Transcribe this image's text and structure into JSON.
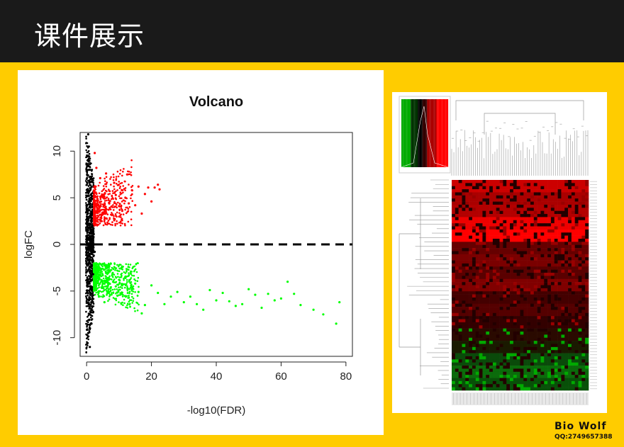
{
  "slide": {
    "title": "课件展示"
  },
  "branding": {
    "name": "Bio Wolf",
    "qq": "QQ:2749657388"
  },
  "colors": {
    "topbar": "#1a1a1a",
    "background": "#ffcc00",
    "up": "#ff0000",
    "down": "#00ff00",
    "ns": "#000000"
  },
  "chart_data": [
    {
      "type": "scatter",
      "title": "Volcano",
      "xlabel": "-log10(FDR)",
      "ylabel": "logFC",
      "xlim": [
        -2,
        82
      ],
      "ylim": [
        -12,
        12
      ],
      "xticks": [
        0,
        20,
        40,
        60,
        80
      ],
      "yticks": [
        -10,
        -5,
        0,
        5,
        10
      ],
      "hline": 0,
      "series": [
        {
          "color": "#000000",
          "points": [
            [
              0.5,
              11.8
            ],
            [
              0.7,
              10.5
            ],
            [
              1,
              9.2
            ],
            [
              0.8,
              8
            ],
            [
              1.2,
              7
            ],
            [
              1.1,
              6
            ],
            [
              1.3,
              5
            ],
            [
              0.9,
              4
            ],
            [
              1.6,
              3.2
            ],
            [
              1.4,
              2.6
            ],
            [
              1.8,
              2
            ],
            [
              2,
              1.5
            ],
            [
              2.2,
              1.1
            ],
            [
              0.6,
              0.5
            ],
            [
              1.8,
              0.3
            ],
            [
              0.6,
              -0.5
            ],
            [
              2.5,
              -0.8
            ],
            [
              2.2,
              -1.2
            ],
            [
              1.8,
              -1.6
            ],
            [
              1.5,
              -2.2
            ],
            [
              1.2,
              -2.8
            ],
            [
              2,
              -3.2
            ],
            [
              1,
              -3.7
            ],
            [
              0.8,
              -4.5
            ],
            [
              1.2,
              -5.2
            ],
            [
              0.7,
              -6
            ],
            [
              1,
              -7.5
            ],
            [
              1.5,
              -8.5
            ],
            [
              0.5,
              -9.5
            ],
            [
              1,
              -11
            ]
          ]
        },
        {
          "color": "#ff0000",
          "points": [
            [
              2.4,
              2.3
            ],
            [
              3,
              2.8
            ],
            [
              4,
              3.5
            ],
            [
              3.5,
              4.2
            ],
            [
              5,
              5.2
            ],
            [
              2.8,
              6.2
            ],
            [
              4.2,
              7.1
            ],
            [
              3,
              8.2
            ],
            [
              2.5,
              9.8
            ],
            [
              6,
              3.8
            ],
            [
              7,
              4.4
            ],
            [
              8,
              3.2
            ],
            [
              9,
              5.3
            ],
            [
              10,
              4.1
            ],
            [
              11,
              3.6
            ],
            [
              12,
              5
            ],
            [
              12.5,
              7.5
            ],
            [
              13,
              4.4
            ],
            [
              14,
              5.8
            ],
            [
              15,
              4.2
            ],
            [
              16,
              6.2
            ],
            [
              17,
              3.3
            ],
            [
              18,
              5.4
            ],
            [
              19,
              6.1
            ],
            [
              20,
              4.6
            ],
            [
              21,
              6.1
            ],
            [
              22,
              6.4
            ],
            [
              22.5,
              5.9
            ],
            [
              8.5,
              6.6
            ],
            [
              6,
              7.6
            ]
          ]
        },
        {
          "color": "#00ff00",
          "points": [
            [
              2.5,
              -2.4
            ],
            [
              3.5,
              -3
            ],
            [
              4.5,
              -3.4
            ],
            [
              5.5,
              -2.7
            ],
            [
              6.5,
              -3.6
            ],
            [
              7,
              -4.2
            ],
            [
              8,
              -3.1
            ],
            [
              9,
              -4.5
            ],
            [
              10,
              -3.8
            ],
            [
              11,
              -4.4
            ],
            [
              12,
              -3.6
            ],
            [
              13,
              -5.7
            ],
            [
              14,
              -4.8
            ],
            [
              15,
              -4.2
            ],
            [
              16,
              -5.1
            ],
            [
              18,
              -6.5
            ],
            [
              20,
              -4.4
            ],
            [
              22,
              -5.2
            ],
            [
              24,
              -6.4
            ],
            [
              26,
              -5.6
            ],
            [
              28,
              -5.1
            ],
            [
              30,
              -6.2
            ],
            [
              32,
              -5.6
            ],
            [
              34,
              -6.4
            ],
            [
              36,
              -7
            ],
            [
              38,
              -4.9
            ],
            [
              40,
              -6
            ],
            [
              42,
              -5.2
            ],
            [
              44,
              -6.1
            ],
            [
              46,
              -6.6
            ],
            [
              48,
              -6.4
            ],
            [
              50,
              -4.8
            ],
            [
              52,
              -5.4
            ],
            [
              54,
              -6.8
            ],
            [
              56,
              -5.3
            ],
            [
              58,
              -6
            ],
            [
              60,
              -5.8
            ],
            [
              62,
              -4
            ],
            [
              64,
              -5.3
            ],
            [
              66,
              -6.5
            ],
            [
              70,
              -7
            ],
            [
              73,
              -7.5
            ],
            [
              77,
              -8.5
            ],
            [
              78,
              -6.2
            ],
            [
              17,
              -7.4
            ],
            [
              9.5,
              -5.5
            ],
            [
              5.5,
              -6.2
            ],
            [
              3.8,
              -5.6
            ]
          ]
        }
      ]
    },
    {
      "type": "heatmap",
      "row_groups": [
        {
          "color": "#cc0000"
        },
        {
          "color": "#aa0000"
        },
        {
          "color": "#b30000"
        },
        {
          "color": "#ee0000"
        },
        {
          "color": "#ff0000"
        },
        {
          "color": "#660000"
        },
        {
          "color": "#7a0000"
        },
        {
          "color": "#5a0000"
        },
        {
          "color": "#800000"
        },
        {
          "color": "#440000"
        },
        {
          "color": "#550000"
        },
        {
          "color": "#330000"
        },
        {
          "color": "#2a0a00"
        },
        {
          "color": "#1a1a00"
        },
        {
          "color": "#0a4a0a"
        },
        {
          "color": "#0b6b0b"
        },
        {
          "color": "#085008"
        }
      ]
    }
  ]
}
